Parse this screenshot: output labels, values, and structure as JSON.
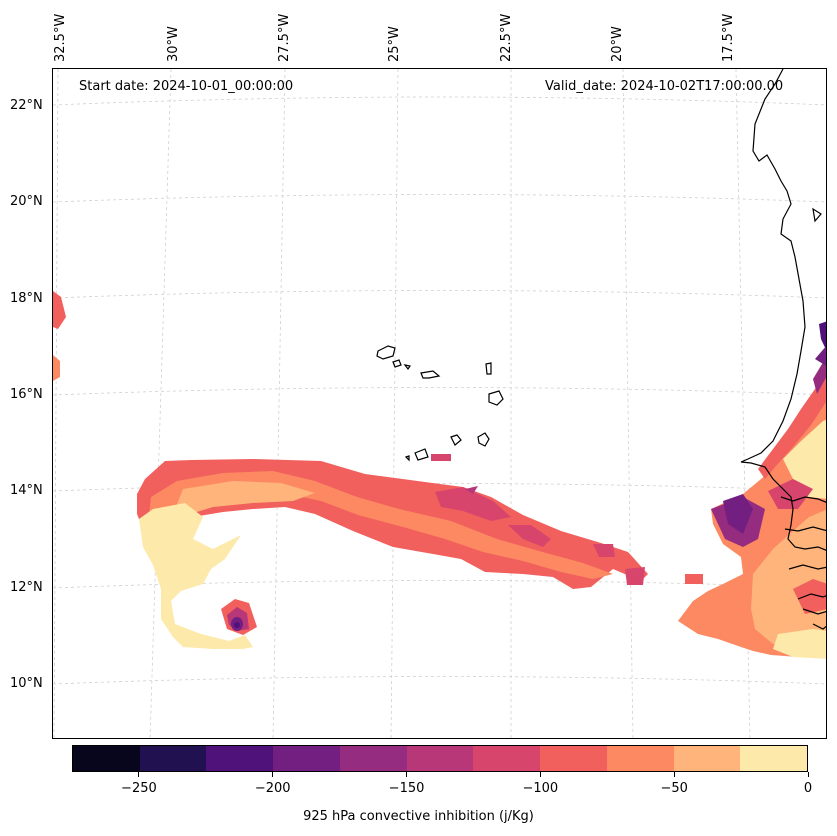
{
  "map": {
    "start_label": "Start date: 2024-10-01_00:00:00",
    "valid_label": "Valid_date: 2024-10-02T17:00:00.00",
    "lat_labels": [
      "22°N",
      "20°N",
      "18°N",
      "16°N",
      "14°N",
      "12°N",
      "10°N"
    ],
    "lon_labels": [
      "32.5°W",
      "30°W",
      "27.5°W",
      "25°W",
      "22.5°W",
      "20°W",
      "17.5°W"
    ],
    "region": "Cape Verde islands and West African coast (Senegal, Gambia, Guinea-Bissau)"
  },
  "colorbar": {
    "label": "925 hPa convective inhibition (j/Kg)",
    "tick_labels": [
      "−250",
      "−200",
      "−150",
      "−100",
      "−50",
      "0"
    ],
    "tick_values": [
      -250,
      -200,
      -150,
      -100,
      -50,
      0
    ],
    "range": [
      -275,
      0
    ],
    "step": 25,
    "colors": [
      "#07061c",
      "#221150",
      "#4f127b",
      "#721f81",
      "#952c80",
      "#b73779",
      "#d8456c",
      "#f1605d",
      "#fc8961",
      "#feb47b",
      "#fde9a9"
    ]
  }
}
